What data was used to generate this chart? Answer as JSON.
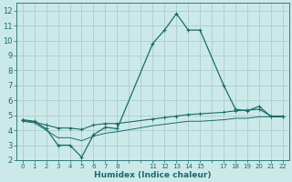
{
  "xlabel": "Humidex (Indice chaleur)",
  "background_color": "#cce9e9",
  "grid_color": "#b0d0d0",
  "line_color": "#1a6b6b",
  "xlim": [
    -0.5,
    22.5
  ],
  "ylim": [
    2,
    12.5
  ],
  "xtick_labels": [
    "0",
    "1",
    "2",
    "3",
    "4",
    "5",
    "6",
    "7",
    "8",
    "",
    "",
    "11",
    "12",
    "13",
    "14",
    "15",
    "",
    "17",
    "18",
    "19",
    "20",
    "21",
    "22"
  ],
  "yticks": [
    2,
    3,
    4,
    5,
    6,
    7,
    8,
    9,
    10,
    11,
    12
  ],
  "series1_x": [
    0,
    1,
    2,
    3,
    4,
    5,
    6,
    7,
    8,
    11,
    12,
    13,
    14,
    15,
    17,
    18,
    19,
    20,
    21,
    22
  ],
  "series1_y": [
    4.7,
    4.6,
    4.1,
    3.0,
    3.0,
    2.2,
    3.7,
    4.2,
    4.1,
    9.8,
    10.7,
    11.8,
    10.7,
    10.7,
    7.0,
    5.4,
    5.3,
    5.6,
    4.9,
    4.9
  ],
  "series2_x": [
    0,
    1,
    2,
    3,
    4,
    5,
    6,
    7,
    8,
    11,
    12,
    13,
    14,
    15,
    17,
    18,
    19,
    20,
    21,
    22
  ],
  "series2_y": [
    4.65,
    4.55,
    4.35,
    4.15,
    4.15,
    4.05,
    4.35,
    4.45,
    4.45,
    4.75,
    4.85,
    4.95,
    5.05,
    5.1,
    5.2,
    5.3,
    5.35,
    5.4,
    4.95,
    4.95
  ],
  "series3_x": [
    0,
    1,
    2,
    3,
    4,
    5,
    6,
    7,
    8,
    11,
    12,
    13,
    14,
    15,
    17,
    18,
    19,
    20,
    21,
    22
  ],
  "series3_y": [
    4.6,
    4.5,
    4.0,
    3.5,
    3.5,
    3.3,
    3.6,
    3.8,
    3.9,
    4.3,
    4.4,
    4.5,
    4.6,
    4.6,
    4.7,
    4.8,
    4.8,
    4.9,
    4.9,
    4.9
  ]
}
